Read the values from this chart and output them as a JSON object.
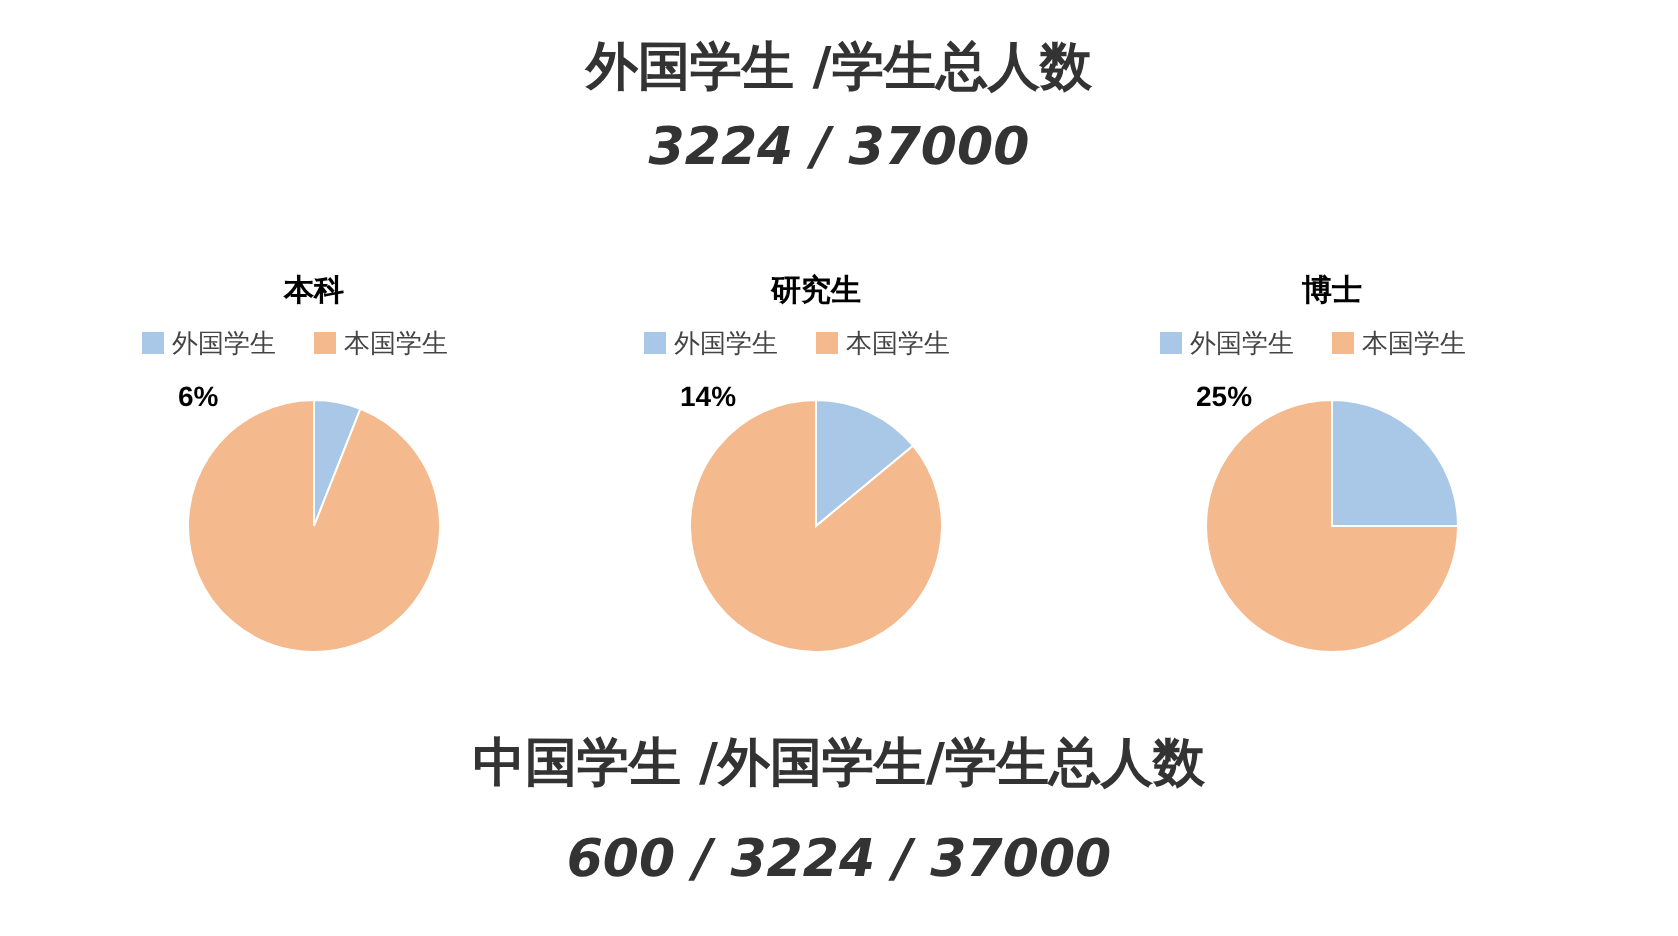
{
  "chart_data": [
    {
      "type": "pie",
      "title": "本科",
      "categories": [
        "外国学生",
        "本国学生"
      ],
      "values": [
        6,
        94
      ],
      "colors": [
        "#a9c8e8",
        "#f4b98c"
      ],
      "value_labels": [
        "6%",
        null
      ],
      "legend": "top",
      "annotations": [
        "外国学生 /学生总人数",
        "3224 / 37000",
        "中国学生 /外国学生/学生总人数",
        "600 / 3224 / 37000"
      ]
    },
    {
      "type": "pie",
      "title": "研究生",
      "categories": [
        "外国学生",
        "本国学生"
      ],
      "values": [
        14,
        86
      ],
      "colors": [
        "#a9c8e8",
        "#f4b98c"
      ],
      "value_labels": [
        "14%",
        null
      ],
      "legend": "top"
    },
    {
      "type": "pie",
      "title": "博士",
      "categories": [
        "外国学生",
        "本国学生"
      ],
      "values": [
        25,
        75
      ],
      "colors": [
        "#a9c8e8",
        "#f4b98c"
      ],
      "value_labels": [
        "25%",
        null
      ],
      "legend": "top"
    }
  ]
}
